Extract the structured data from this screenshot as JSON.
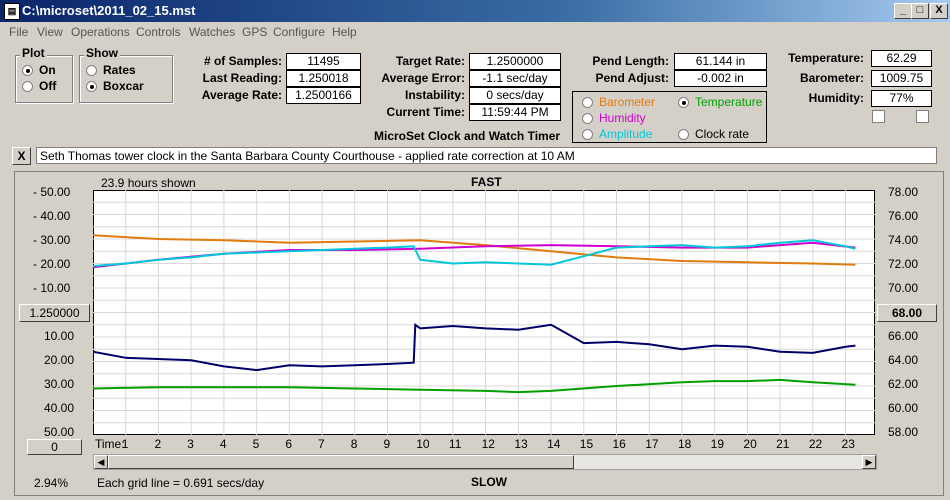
{
  "window": {
    "title": "C:\\microset\\2011_02_15.mst",
    "app_icon": "document-icon"
  },
  "window_controls": {
    "minimize": "_",
    "maximize": "□",
    "close": "X"
  },
  "menu": [
    "File",
    "View",
    "Operations",
    "Controls",
    "Watches",
    "GPS",
    "Configure",
    "Help"
  ],
  "plot_group": {
    "title": "Plot",
    "options": [
      {
        "label": "On",
        "checked": true
      },
      {
        "label": "Off",
        "checked": false
      }
    ]
  },
  "show_group": {
    "title": "Show",
    "options": [
      {
        "label": "Rates",
        "checked": false
      },
      {
        "label": "Boxcar",
        "checked": true
      }
    ]
  },
  "stats": [
    {
      "label": "# of Samples:",
      "value": "11495"
    },
    {
      "label": "Last Reading:",
      "value": "1.250018"
    },
    {
      "label": "Average Rate:",
      "value": "1.2500166"
    }
  ],
  "rate": [
    {
      "label": "Target Rate:",
      "value": "1.2500000"
    },
    {
      "label": "Average Error:",
      "value": "-1.1 sec/day"
    },
    {
      "label": "Instability:",
      "value": "0 secs/day"
    },
    {
      "label": "Current Time:",
      "value": "11:59:44 PM"
    }
  ],
  "pend": [
    {
      "label": "Pend Length:",
      "value": "61.144 in"
    },
    {
      "label": "Pend Adjust:",
      "value": "-0.002 in"
    }
  ],
  "series_select": [
    {
      "label": "Barometer",
      "color": "#e07b10",
      "checked": false
    },
    {
      "label": "Temperature",
      "color": "#00a000",
      "checked": true
    },
    {
      "label": "Humidity",
      "color": "#d000d0",
      "checked": false
    },
    {
      "label": "Amplitude",
      "color": "#00c8d8",
      "checked": false
    },
    {
      "label": "Clock rate",
      "color": "#000000",
      "checked": false
    }
  ],
  "env": [
    {
      "label": "Temperature:",
      "value": "62.29"
    },
    {
      "label": "Barometer:",
      "value": "1009.75"
    },
    {
      "label": "Humidity:",
      "value": "77%"
    }
  ],
  "app_caption": "MicroSet Clock and Watch Timer",
  "note": {
    "close": "X",
    "text": "Seth Thomas tower clock in the Santa Barbara County Courthouse - applied rate correction at 10 AM"
  },
  "chart_panel": {
    "hours_shown": "23.9 hours shown",
    "top_label": "FAST",
    "bottom_label": "SLOW",
    "center_left_button": "1.250000",
    "center_right_button": "68.00",
    "offset_button": "0",
    "zoom_percent": "2.94%",
    "grid_note": "Each grid line = 0.691 secs/day",
    "time_label": "Time:"
  },
  "chart_data": {
    "type": "line",
    "x_ticks": [
      "1",
      "2",
      "3",
      "4",
      "5",
      "6",
      "7",
      "8",
      "9",
      "10",
      "11",
      "12",
      "13",
      "14",
      "15",
      "16",
      "17",
      "18",
      "19",
      "20",
      "21",
      "22",
      "23"
    ],
    "y_left_ticks": [
      "-  50.00",
      "-  40.00",
      "-  30.00",
      "-  20.00",
      "-  10.00",
      "10.00",
      "20.00",
      "30.00",
      "40.00",
      "50.00"
    ],
    "y_right_ticks": [
      "78.00",
      "76.00",
      "74.00",
      "72.00",
      "70.00",
      "66.00",
      "64.00",
      "62.00",
      "60.00",
      "58.00"
    ],
    "xlim": [
      0,
      23.9
    ],
    "ylim_right": [
      58,
      78
    ],
    "series": [
      {
        "name": "Barometer",
        "color": "#e07b10",
        "x": [
          0,
          2,
          4,
          6,
          8,
          10,
          12,
          14,
          16,
          18,
          20,
          22,
          23.3
        ],
        "y": [
          74.3,
          74.0,
          73.9,
          73.7,
          73.8,
          73.9,
          73.5,
          73.0,
          72.5,
          72.2,
          72.1,
          72.0,
          71.9
        ]
      },
      {
        "name": "Temperature",
        "color": "#00a000",
        "x": [
          0,
          2,
          4,
          6,
          8,
          10,
          12,
          13,
          14,
          16,
          18,
          19,
          20,
          21,
          22,
          23.3
        ],
        "y": [
          61.8,
          61.9,
          61.9,
          61.9,
          61.8,
          61.7,
          61.6,
          61.5,
          61.6,
          62.0,
          62.3,
          62.4,
          62.4,
          62.5,
          62.3,
          62.1
        ]
      },
      {
        "name": "Humidity",
        "color": "#d000d0",
        "x": [
          0,
          2,
          4,
          6,
          8,
          10,
          12,
          14,
          16,
          18,
          20,
          22,
          23.3
        ],
        "y": [
          71.7,
          72.3,
          72.8,
          73.1,
          73.1,
          73.2,
          73.4,
          73.5,
          73.4,
          73.3,
          73.3,
          73.7,
          73.3
        ]
      },
      {
        "name": "Amplitude",
        "color": "#00c8d8",
        "x": [
          0,
          1,
          2,
          3,
          4,
          5,
          6,
          7,
          8,
          9,
          9.8,
          10,
          11,
          12,
          13,
          14,
          15,
          16,
          17,
          18,
          19,
          20,
          21,
          22,
          23,
          23.3
        ],
        "y": [
          71.8,
          72.0,
          72.3,
          72.5,
          72.8,
          72.9,
          73.0,
          73.1,
          73.2,
          73.3,
          73.4,
          72.3,
          72.0,
          72.1,
          72.0,
          71.9,
          72.6,
          73.3,
          73.4,
          73.5,
          73.3,
          73.4,
          73.7,
          73.9,
          73.4,
          73.2
        ]
      },
      {
        "name": "Clock rate",
        "color": "#00006b",
        "x": [
          0,
          1,
          2,
          3,
          4,
          5,
          6,
          7,
          8,
          9,
          9.8,
          9.85,
          10,
          11,
          12,
          13,
          14,
          15,
          16,
          17,
          18,
          19,
          20,
          21,
          22,
          23,
          23.3
        ],
        "y": [
          64.8,
          64.3,
          64.2,
          64.1,
          63.6,
          63.3,
          63.7,
          63.6,
          63.7,
          63.8,
          63.9,
          67.0,
          66.7,
          66.9,
          66.7,
          66.6,
          67.0,
          65.5,
          65.6,
          65.4,
          65.0,
          65.3,
          65.2,
          64.8,
          64.7,
          65.2,
          65.3
        ]
      }
    ]
  }
}
